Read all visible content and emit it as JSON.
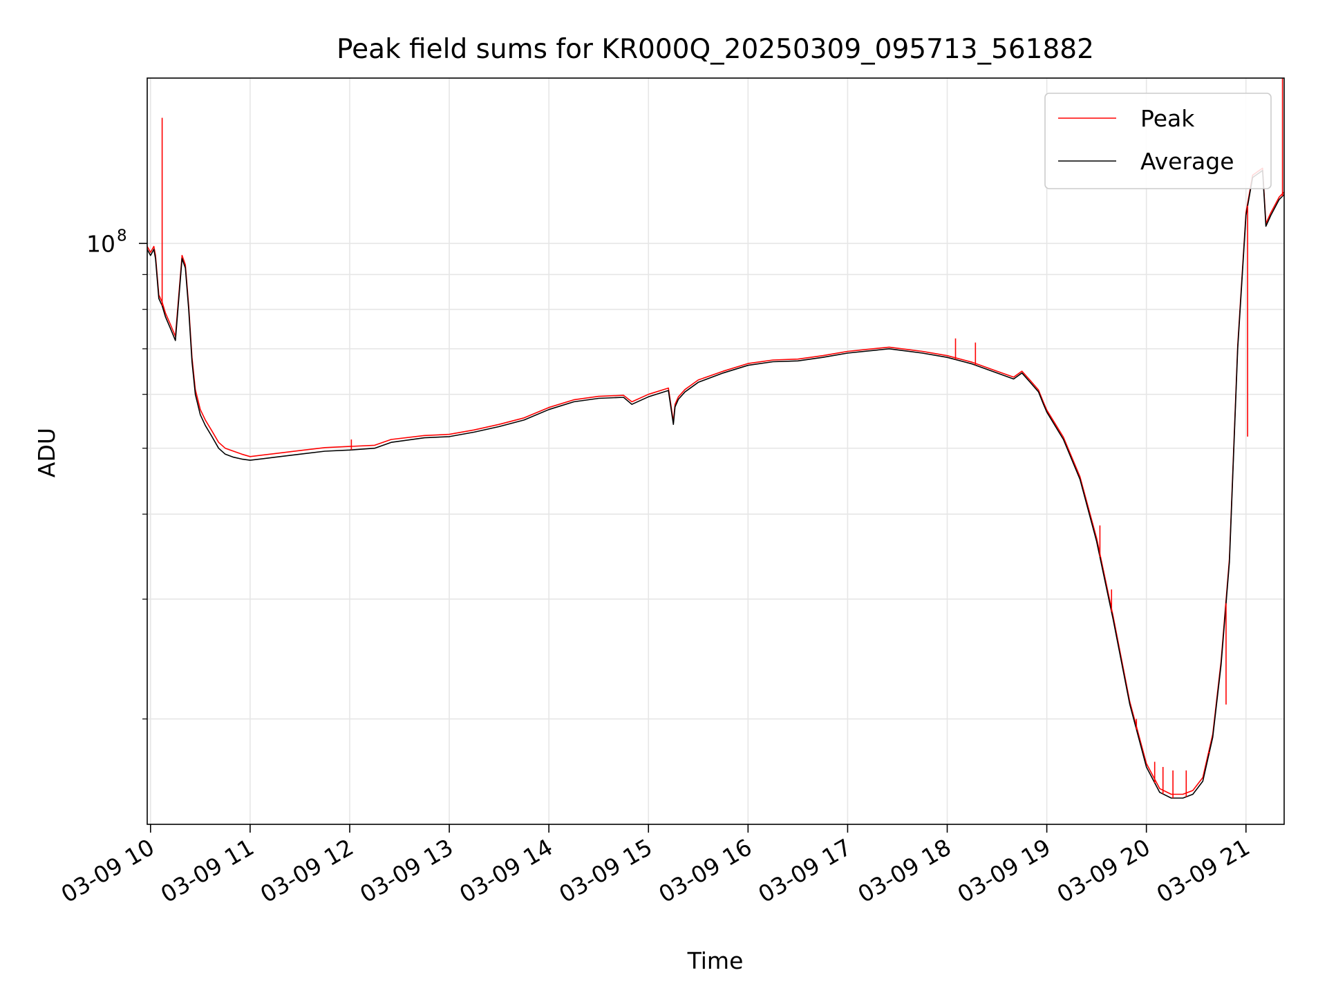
{
  "chart_data": {
    "type": "line",
    "title": "Peak field sums for KR000Q_20250309_095713_561882",
    "xlabel": "Time",
    "ylabel": "ADU",
    "y_scale": "log",
    "xlim": [
      "03-09 09:58",
      "03-09 21:23"
    ],
    "ylim": [
      14000000,
      175000000
    ],
    "grid": true,
    "legend_position": "top-right",
    "x_ticks": [
      "03-09 10",
      "03-09 11",
      "03-09 12",
      "03-09 13",
      "03-09 14",
      "03-09 15",
      "03-09 16",
      "03-09 17",
      "03-09 18",
      "03-09 19",
      "03-09 20",
      "03-09 21"
    ],
    "y_ticks": [
      {
        "value": 100000000,
        "label_base": "10",
        "label_exp": "8"
      }
    ],
    "colors": {
      "Peak": "#ff0000",
      "Average": "#000000"
    },
    "series": [
      {
        "name": "Average",
        "x": [
          "03-09 09:58",
          "03-09 10:00",
          "03-09 10:02",
          "03-09 10:03",
          "03-09 10:05",
          "03-09 10:07",
          "03-09 10:09",
          "03-09 10:12",
          "03-09 10:15",
          "03-09 10:19",
          "03-09 10:21",
          "03-09 10:23",
          "03-09 10:25",
          "03-09 10:27",
          "03-09 10:30",
          "03-09 10:33",
          "03-09 10:37",
          "03-09 10:41",
          "03-09 10:45",
          "03-09 10:50",
          "03-09 10:55",
          "03-09 11:00",
          "03-09 11:15",
          "03-09 11:30",
          "03-09 11:45",
          "03-09 12:00",
          "03-09 12:15",
          "03-09 12:25",
          "03-09 12:45",
          "03-09 13:00",
          "03-09 13:15",
          "03-09 13:30",
          "03-09 13:45",
          "03-09 14:00",
          "03-09 14:15",
          "03-09 14:30",
          "03-09 14:45",
          "03-09 14:50",
          "03-09 15:00",
          "03-09 15:12",
          "03-09 15:15",
          "03-09 15:16",
          "03-09 15:18",
          "03-09 15:22",
          "03-09 15:30",
          "03-09 15:45",
          "03-09 16:00",
          "03-09 16:15",
          "03-09 16:30",
          "03-09 16:45",
          "03-09 17:00",
          "03-09 17:25",
          "03-09 17:45",
          "03-09 18:00",
          "03-09 18:15",
          "03-09 18:30",
          "03-09 18:40",
          "03-09 18:45",
          "03-09 18:50",
          "03-09 18:55",
          "03-09 18:58",
          "03-09 19:00",
          "03-09 19:10",
          "03-09 19:20",
          "03-09 19:30",
          "03-09 19:40",
          "03-09 19:50",
          "03-09 20:00",
          "03-09 20:08",
          "03-09 20:15",
          "03-09 20:22",
          "03-09 20:28",
          "03-09 20:34",
          "03-09 20:40",
          "03-09 20:45",
          "03-09 20:50",
          "03-09 20:55",
          "03-09 21:00",
          "03-09 21:04",
          "03-09 21:06",
          "03-09 21:08",
          "03-09 21:10",
          "03-09 21:12",
          "03-09 21:15",
          "03-09 21:20",
          "03-09 21:23"
        ],
        "y": [
          98000000,
          96000000,
          98000000,
          95000000,
          83000000,
          81000000,
          78000000,
          75000000,
          72000000,
          95000000,
          92000000,
          80000000,
          67000000,
          60000000,
          56000000,
          54000000,
          52000000,
          50000000,
          49000000,
          48500000,
          48200000,
          48000000,
          48500000,
          49000000,
          49500000,
          49700000,
          50000000,
          51000000,
          51800000,
          52000000,
          52800000,
          53800000,
          55000000,
          57000000,
          58500000,
          59200000,
          59400000,
          58000000,
          59500000,
          60800000,
          54200000,
          57500000,
          59000000,
          60500000,
          62500000,
          64500000,
          66200000,
          67000000,
          67200000,
          68000000,
          69000000,
          70000000,
          69000000,
          68000000,
          66500000,
          64500000,
          63200000,
          64500000,
          62500000,
          60500000,
          58000000,
          56500000,
          51500000,
          45000000,
          36500000,
          28000000,
          21000000,
          17000000,
          15600000,
          15300000,
          15300000,
          15500000,
          16200000,
          18800000,
          24000000,
          34000000,
          70000000,
          110000000,
          125000000,
          126000000,
          127000000,
          128000000,
          106000000,
          110000000,
          116000000,
          118000000
        ]
      },
      {
        "name": "Peak",
        "x": [
          "03-09 09:58",
          "03-09 10:00",
          "03-09 10:02",
          "03-09 10:03",
          "03-09 10:05",
          "03-09 10:07",
          "03-09 10:09",
          "03-09 10:12",
          "03-09 10:15",
          "03-09 10:19",
          "03-09 10:21",
          "03-09 10:23",
          "03-09 10:25",
          "03-09 10:27",
          "03-09 10:30",
          "03-09 10:33",
          "03-09 10:37",
          "03-09 10:41",
          "03-09 10:45",
          "03-09 10:50",
          "03-09 10:55",
          "03-09 11:00",
          "03-09 11:15",
          "03-09 11:30",
          "03-09 11:45",
          "03-09 12:00",
          "03-09 12:15",
          "03-09 12:25",
          "03-09 12:45",
          "03-09 13:00",
          "03-09 13:15",
          "03-09 13:30",
          "03-09 13:45",
          "03-09 14:00",
          "03-09 14:15",
          "03-09 14:30",
          "03-09 14:45",
          "03-09 14:50",
          "03-09 15:00",
          "03-09 15:12",
          "03-09 15:15",
          "03-09 15:16",
          "03-09 15:18",
          "03-09 15:22",
          "03-09 15:30",
          "03-09 15:45",
          "03-09 16:00",
          "03-09 16:15",
          "03-09 16:30",
          "03-09 16:45",
          "03-09 17:00",
          "03-09 17:25",
          "03-09 17:45",
          "03-09 18:00",
          "03-09 18:15",
          "03-09 18:30",
          "03-09 18:40",
          "03-09 18:45",
          "03-09 18:50",
          "03-09 18:55",
          "03-09 18:58",
          "03-09 19:00",
          "03-09 19:10",
          "03-09 19:20",
          "03-09 19:30",
          "03-09 19:40",
          "03-09 19:50",
          "03-09 20:00",
          "03-09 20:08",
          "03-09 20:15",
          "03-09 20:22",
          "03-09 20:28",
          "03-09 20:34",
          "03-09 20:40",
          "03-09 20:45",
          "03-09 20:50",
          "03-09 20:55",
          "03-09 21:00",
          "03-09 21:04",
          "03-09 21:06",
          "03-09 21:08",
          "03-09 21:10",
          "03-09 21:12",
          "03-09 21:15",
          "03-09 21:20",
          "03-09 21:23"
        ],
        "y": [
          99000000,
          97000000,
          99000000,
          96000000,
          84000000,
          82000000,
          79000000,
          76000000,
          73000000,
          96000000,
          93000000,
          81000000,
          68000000,
          61000000,
          57000000,
          55000000,
          53000000,
          51000000,
          50000000,
          49500000,
          49000000,
          48600000,
          49100000,
          49600000,
          50100000,
          50300000,
          50500000,
          51500000,
          52200000,
          52400000,
          53200000,
          54200000,
          55400000,
          57400000,
          58900000,
          59600000,
          59800000,
          58500000,
          60000000,
          61300000,
          54700000,
          58000000,
          59500000,
          61000000,
          63000000,
          64900000,
          66600000,
          67400000,
          67600000,
          68400000,
          69400000,
          70400000,
          69400000,
          68400000,
          66900000,
          64900000,
          63600000,
          64900000,
          62900000,
          60900000,
          58400000,
          56900000,
          51900000,
          45400000,
          36900000,
          28300000,
          21200000,
          17200000,
          15800000,
          15500000,
          15500000,
          15700000,
          16400000,
          19000000,
          24300000,
          34400000,
          70800000,
          111000000,
          126000000,
          127000000,
          128000000,
          129000000,
          107000000,
          111000000,
          117000000,
          119000000
        ]
      }
    ],
    "peak_spikes": [
      {
        "x": "03-09 10:07",
        "y": 153000000
      },
      {
        "x": "03-09 12:01",
        "y": 51500000
      },
      {
        "x": "03-09 18:05",
        "y": 72500000
      },
      {
        "x": "03-09 18:17",
        "y": 71500000
      },
      {
        "x": "03-09 19:32",
        "y": 38500000
      },
      {
        "x": "03-09 19:39",
        "y": 31000000
      },
      {
        "x": "03-09 19:54",
        "y": 20000000
      },
      {
        "x": "03-09 20:05",
        "y": 17300000
      },
      {
        "x": "03-09 20:10",
        "y": 17000000
      },
      {
        "x": "03-09 20:16",
        "y": 16800000
      },
      {
        "x": "03-09 20:24",
        "y": 16800000
      },
      {
        "x": "03-09 20:38",
        "y": 17800000
      },
      {
        "x": "03-09 20:48",
        "y": 21000000
      },
      {
        "x": "03-09 21:01",
        "y": 52000000
      },
      {
        "x": "03-09 21:22",
        "y": 175000000
      }
    ]
  }
}
